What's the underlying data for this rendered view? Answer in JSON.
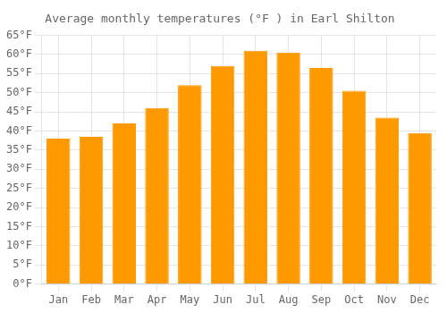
{
  "chart_data": {
    "type": "bar",
    "title": "Average monthly temperatures (°F ) in Earl Shilton",
    "categories": [
      "Jan",
      "Feb",
      "Mar",
      "Apr",
      "May",
      "Jun",
      "Jul",
      "Aug",
      "Sep",
      "Oct",
      "Nov",
      "Dec"
    ],
    "values": [
      38,
      38.5,
      42,
      46,
      52,
      57,
      61,
      60.5,
      56.5,
      50.5,
      43.5,
      39.5
    ],
    "color": "#FF9900",
    "ylim": [
      0,
      65
    ],
    "yticks": [
      {
        "value": 0,
        "label": "0°F"
      },
      {
        "value": 5,
        "label": "5°F"
      },
      {
        "value": 10,
        "label": "10°F"
      },
      {
        "value": 15,
        "label": "15°F"
      },
      {
        "value": 20,
        "label": "20°F"
      },
      {
        "value": 25,
        "label": "25°F"
      },
      {
        "value": 30,
        "label": "30°F"
      },
      {
        "value": 35,
        "label": "35°F"
      },
      {
        "value": 40,
        "label": "40°F"
      },
      {
        "value": 45,
        "label": "45°F"
      },
      {
        "value": 50,
        "label": "50°F"
      },
      {
        "value": 55,
        "label": "55°F"
      },
      {
        "value": 60,
        "label": "60°F"
      },
      {
        "value": 65,
        "label": "65°F"
      }
    ],
    "grid": true
  }
}
